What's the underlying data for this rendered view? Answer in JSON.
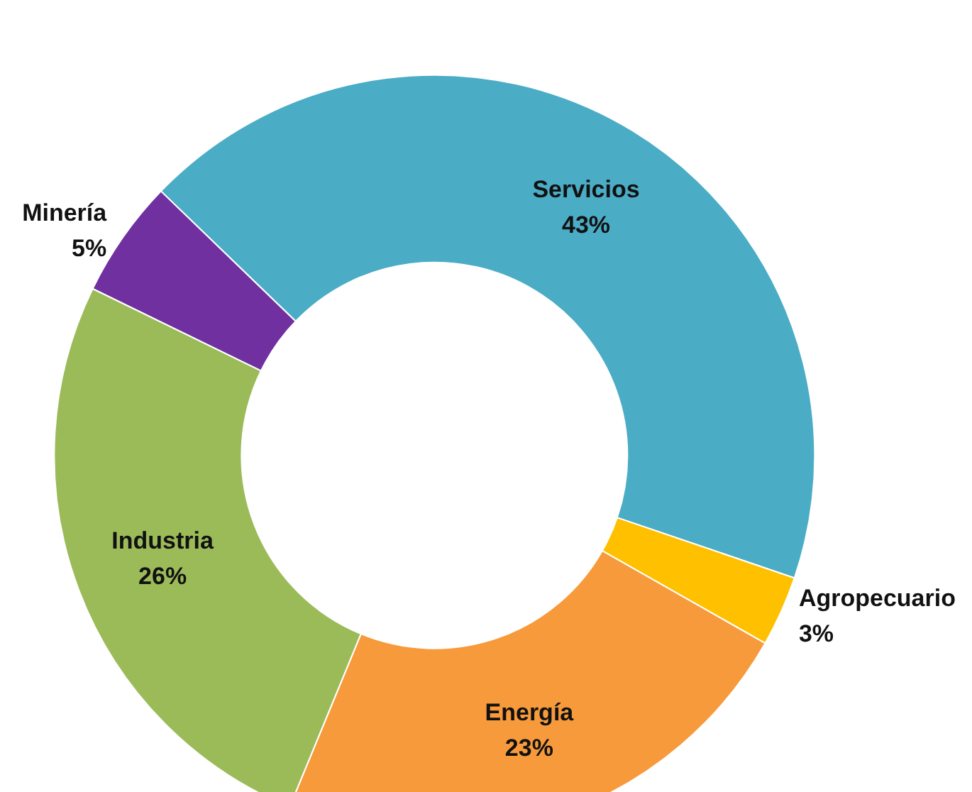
{
  "chart_data": {
    "type": "donut",
    "categories": [
      "Servicios",
      "Agropecuario",
      "Energía",
      "Industria",
      "Minería"
    ],
    "values": [
      43,
      3,
      23,
      26,
      5
    ],
    "value_labels": [
      "43%",
      "3%",
      "23%",
      "26%",
      "5%"
    ],
    "colors": [
      "#4bacc6",
      "#ffc000",
      "#f79a3b",
      "#9bbb59",
      "#7030a0"
    ],
    "legend": false
  }
}
